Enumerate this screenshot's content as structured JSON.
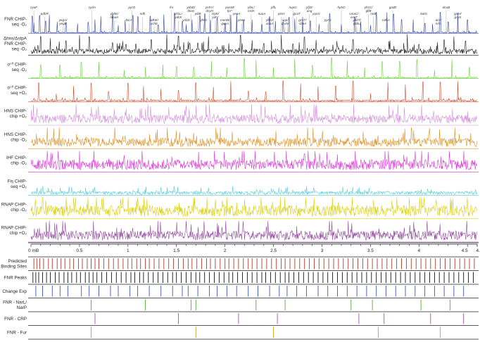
{
  "chart_data": {
    "type": "line",
    "title": "",
    "xlabel": "",
    "ylabel": "",
    "x_unit": "mB",
    "xlim": [
      0,
      4.6
    ],
    "x_ticks": [
      "0 mB",
      "0.5",
      "1",
      "1.5",
      "2",
      "2.5",
      "3",
      "3.5",
      "4",
      "4.5",
      "4.6"
    ],
    "x_tick_values": [
      0,
      0.5,
      1,
      1.5,
      2,
      2.5,
      3,
      3.5,
      4,
      4.5,
      4.6
    ],
    "ylim": [
      0,
      1
    ],
    "grid": false,
    "gene_annotations": [
      {
        "label": "cyaF",
        "pos": 0.03
      },
      {
        "label": "pdhR",
        "pos": 0.14
      },
      {
        "label": "yegA/ yegE",
        "pos": 0.33
      },
      {
        "label": "cydA",
        "pos": 0.63
      },
      {
        "label": "ybbK/ moaA",
        "pos": 0.86
      },
      {
        "label": "focA",
        "pos": 1.01
      },
      {
        "label": "pyrD",
        "pos": 1.04
      },
      {
        "label": "ndh",
        "pos": 1.15
      },
      {
        "label": "adhE/ ychE",
        "pos": 1.27
      },
      {
        "label": "fnr",
        "pos": 1.45
      },
      {
        "label": "yhcL/ ydcK",
        "pos": 1.52
      },
      {
        "label": "ynbS",
        "pos": 1.6
      },
      {
        "label": "ydaD/ ldoG",
        "pos": 1.65
      },
      {
        "label": "ydiB",
        "pos": 1.72
      },
      {
        "label": "yhfG",
        "pos": 1.78
      },
      {
        "label": "ynhY/ dsyH",
        "pos": 1.84
      },
      {
        "label": "styK/ ydiV",
        "pos": 1.9
      },
      {
        "label": "menB/ gapA",
        "pos": 2.0
      },
      {
        "label": "ywcM/ fpr*",
        "pos": 2.05
      },
      {
        "label": "yeaA",
        "pos": 2.12
      },
      {
        "label": "yeeA",
        "pos": 2.17
      },
      {
        "label": "yfeL/ nrdA",
        "pos": 2.27
      },
      {
        "label": "nuoA",
        "pos": 2.38
      },
      {
        "label": "yfbV/ ackA",
        "pos": 2.46
      },
      {
        "label": "yffL",
        "pos": 2.5
      },
      {
        "label": "ptsH",
        "pos": 2.58
      },
      {
        "label": "upp/ purM",
        "pos": 2.62
      },
      {
        "label": "nupG",
        "pos": 2.7
      },
      {
        "label": "gcaT",
        "pos": 2.74
      },
      {
        "label": "gcvT/ cbaA",
        "pos": 2.8
      },
      {
        "label": "yfjD/ ung",
        "pos": 2.87
      },
      {
        "label": "yqcN",
        "pos": 2.94
      },
      {
        "label": "pyrG",
        "pos": 3.06
      },
      {
        "label": "hybO",
        "pos": 3.2
      },
      {
        "label": "cmaC/ excT",
        "pos": 3.33
      },
      {
        "label": "yhbT/ yhbU",
        "pos": 3.36
      },
      {
        "label": "yhcC/ glfB",
        "pos": 3.48
      },
      {
        "label": "nirB",
        "pos": 3.53
      },
      {
        "label": "ndhA",
        "pos": 3.66
      },
      {
        "label": "gadE",
        "pos": 3.73
      },
      {
        "label": "katG",
        "pos": 4.05
      },
      {
        "label": "acs/ nrfA",
        "pos": 4.2
      },
      {
        "label": "dcuB",
        "pos": 4.28
      },
      {
        "label": "yjeH/ groS",
        "pos": 4.4
      }
    ],
    "tracks": [
      {
        "label": [
          "FNR CHIP-",
          "seq -O₂"
        ],
        "color": "#2b3c9a",
        "baseline": 0.03,
        "spikes": [
          0.012,
          0.03,
          0.09,
          0.15,
          0.19,
          0.27,
          0.36,
          0.48,
          0.59,
          0.66,
          0.72,
          0.84,
          0.9,
          0.97,
          1.05,
          1.1,
          1.23,
          1.31,
          1.37,
          1.48,
          1.56,
          1.6,
          1.66,
          1.74,
          1.79,
          1.85,
          1.92,
          2.0,
          2.06,
          2.12,
          2.19,
          2.28,
          2.38,
          2.46,
          2.52,
          2.6,
          2.66,
          2.72,
          2.8,
          2.88,
          2.97,
          3.08,
          3.2,
          3.34,
          3.4,
          3.5,
          3.56,
          3.67,
          3.74,
          3.82,
          3.94,
          4.06,
          4.14,
          4.22,
          4.3,
          4.4,
          4.5
        ]
      },
      {
        "label": [
          "Δhns/ΔstpA",
          "FNR CHIP-",
          "seq -O₂"
        ],
        "color": "#111111",
        "baseline": 0.18,
        "spikes": [
          0.04,
          0.1,
          0.2,
          0.36,
          0.5,
          0.6,
          0.84,
          0.98,
          1.08,
          1.24,
          1.4,
          1.52,
          1.62,
          1.72,
          1.83,
          1.92,
          2.04,
          2.16,
          2.28,
          2.4,
          2.48,
          2.58,
          2.7,
          2.82,
          2.94,
          3.02,
          3.16,
          3.32,
          3.46,
          3.58,
          3.7,
          3.88,
          4.0,
          4.12,
          4.26,
          4.36,
          4.48
        ]
      },
      {
        "label": [
          "σ⁷⁰ CHIP-",
          "seq -O₂"
        ],
        "color": "#66cc33",
        "baseline": 0.04,
        "spikes": [
          0.1,
          0.3,
          0.52,
          0.7,
          0.96,
          1.18,
          1.36,
          1.5,
          1.68,
          1.86,
          2.02,
          2.2,
          2.32,
          2.5,
          2.72,
          2.9,
          3.1,
          3.26,
          3.44,
          3.62,
          3.8,
          3.98,
          4.16,
          4.34,
          4.52
        ]
      },
      {
        "label": [
          "σ⁷⁰ CHIP-",
          "seq +O₂"
        ],
        "color": "#cc4422",
        "baseline": 0.06,
        "spikes": [
          0.08,
          0.26,
          0.44,
          0.62,
          0.8,
          1.0,
          1.16,
          1.34,
          1.52,
          1.7,
          1.88,
          2.06,
          2.24,
          2.42,
          2.6,
          2.78,
          2.96,
          3.14,
          3.32,
          3.5,
          3.68,
          3.86,
          4.04,
          4.22,
          4.4
        ]
      },
      {
        "label": [
          "HNS CHIP-",
          "chip +O₂"
        ],
        "color": "#d18ad8",
        "baseline": 0.3,
        "spikes": []
      },
      {
        "label": [
          "HNS CHIP-",
          "chip -O₂"
        ],
        "color": "#d98a18",
        "baseline": 0.3,
        "spikes": []
      },
      {
        "label": [
          "IHF CHIP-",
          "chip -O₂"
        ],
        "color": "#d62fd2",
        "baseline": 0.35,
        "spikes": []
      },
      {
        "label": [
          "Fis CHIP-",
          "seq +O₂"
        ],
        "color": "#4cc6d2",
        "baseline": 0.12,
        "spikes": []
      },
      {
        "label": [
          "RNAP CHIP-",
          "chip -O₂"
        ],
        "color": "#d7cc00",
        "baseline": 0.38,
        "spikes": []
      },
      {
        "label": [
          "RNAP CHIP-",
          "chip +O₂"
        ],
        "color": "#8a3a96",
        "baseline": 0.32,
        "spikes": []
      }
    ],
    "site_rows": [
      {
        "label": [
          "Predicted",
          "Binding Sites"
        ],
        "color": "#b23a2a",
        "positions": [
          0.03,
          0.06,
          0.09,
          0.13,
          0.18,
          0.22,
          0.27,
          0.31,
          0.35,
          0.4,
          0.44,
          0.49,
          0.53,
          0.58,
          0.62,
          0.66,
          0.7,
          0.75,
          0.8,
          0.85,
          0.9,
          0.95,
          1.0,
          1.04,
          1.09,
          1.13,
          1.18,
          1.22,
          1.27,
          1.32,
          1.37,
          1.42,
          1.47,
          1.52,
          1.57,
          1.62,
          1.66,
          1.71,
          1.76,
          1.81,
          1.85,
          1.9,
          1.95,
          2.0,
          2.04,
          2.09,
          2.14,
          2.19,
          2.24,
          2.28,
          2.33,
          2.38,
          2.43,
          2.48,
          2.53,
          2.58,
          2.62,
          2.67,
          2.72,
          2.77,
          2.82,
          2.87,
          2.92,
          2.97,
          3.02,
          3.07,
          3.12,
          3.17,
          3.22,
          3.27,
          3.32,
          3.37,
          3.42,
          3.47,
          3.52,
          3.57,
          3.62,
          3.67,
          3.72,
          3.77,
          3.82,
          3.87,
          3.92,
          3.97,
          4.02,
          4.07,
          4.12,
          4.17,
          4.22,
          4.27,
          4.32,
          4.37,
          4.42,
          4.47,
          4.52,
          4.57
        ]
      },
      {
        "label": [
          "FNR Peaks"
        ],
        "color": "#111111",
        "positions": [
          0.02,
          0.05,
          0.08,
          0.12,
          0.16,
          0.2,
          0.25,
          0.29,
          0.34,
          0.38,
          0.42,
          0.47,
          0.51,
          0.56,
          0.6,
          0.64,
          0.68,
          0.73,
          0.78,
          0.83,
          0.88,
          0.93,
          0.98,
          1.03,
          1.07,
          1.12,
          1.16,
          1.21,
          1.26,
          1.31,
          1.36,
          1.41,
          1.46,
          1.5,
          1.55,
          1.6,
          1.65,
          1.7,
          1.74,
          1.79,
          1.84,
          1.89,
          1.94,
          1.99,
          2.04,
          2.08,
          2.13,
          2.18,
          2.23,
          2.28,
          2.33,
          2.38,
          2.42,
          2.47,
          2.52,
          2.57,
          2.62,
          2.66,
          2.71,
          2.76,
          2.81,
          2.86,
          2.91,
          2.96,
          3.01,
          3.06,
          3.11,
          3.16,
          3.21,
          3.26,
          3.31,
          3.36,
          3.41,
          3.46,
          3.51,
          3.56,
          3.61,
          3.66,
          3.71,
          3.76,
          3.81,
          3.86,
          3.91,
          3.96,
          4.01,
          4.06,
          4.11,
          4.16,
          4.21,
          4.26,
          4.31,
          4.36,
          4.41,
          4.46,
          4.51,
          4.56
        ]
      },
      {
        "label": [
          "Change Exp"
        ],
        "color": "#3a52c8",
        "positions": [
          0.05,
          0.12,
          0.22,
          0.3,
          0.38,
          0.52,
          0.6,
          0.7,
          0.82,
          0.9,
          1.02,
          1.1,
          1.22,
          1.34,
          1.46,
          1.56,
          1.62,
          1.72,
          1.84,
          1.92,
          2.02,
          2.12,
          2.24,
          2.34,
          2.46,
          2.56,
          2.64,
          2.74,
          2.84,
          2.96,
          3.06,
          3.16,
          3.26,
          3.36,
          3.46,
          3.56,
          3.66,
          3.76,
          3.86,
          3.96,
          4.06,
          4.16,
          4.26,
          4.36,
          4.46
        ]
      },
      {
        "label": [
          "FNR - NarL/",
          "NarP"
        ],
        "color": "#55aa33",
        "positions": [
          0.62,
          1.18,
          1.65,
          1.7,
          2.32,
          2.62,
          3.3,
          3.52,
          4.02,
          4.32
        ]
      },
      {
        "label": [
          "FNR - CRP"
        ],
        "color": "#b04ab8",
        "positions": [
          0.66,
          1.52,
          2.14,
          2.54,
          3.38,
          3.64,
          4.12,
          4.46
        ]
      },
      {
        "label": [
          "FNR - Fur"
        ],
        "color": "#c9a018",
        "positions": [
          0.62,
          1.7,
          2.5,
          3.58,
          4.22
        ]
      }
    ]
  }
}
